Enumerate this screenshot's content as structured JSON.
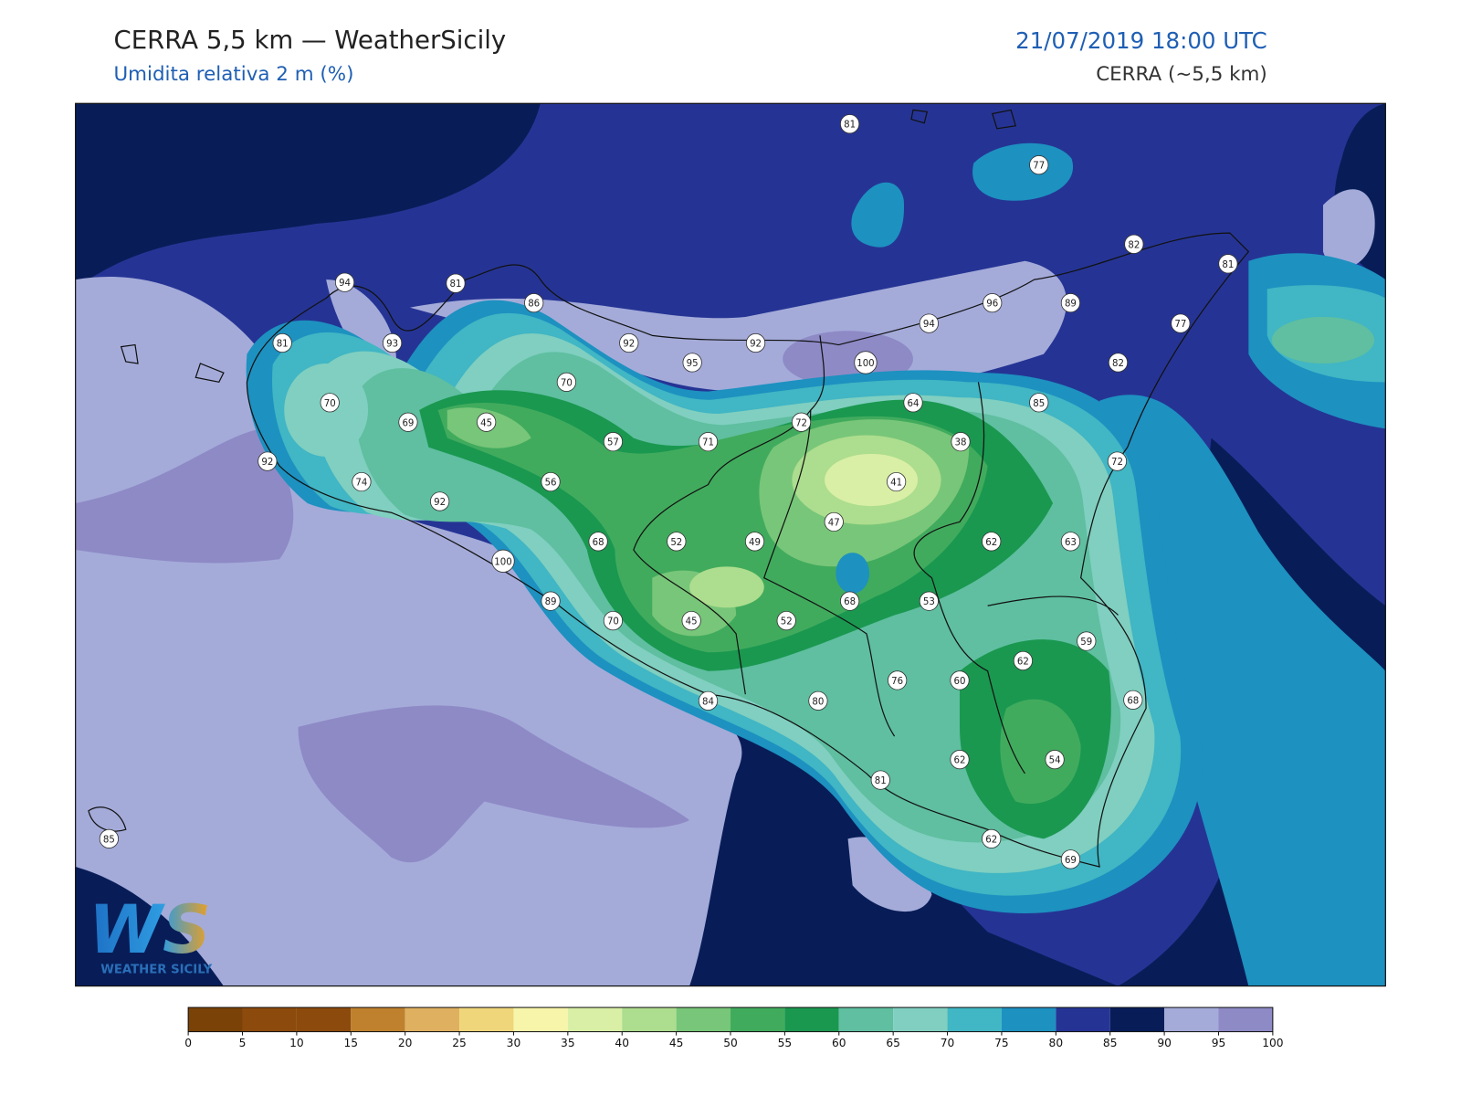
{
  "header": {
    "title": "CERRA 5,5 km — WeatherSicily",
    "subtitle": "Umidita relativa 2 m (%)",
    "datetime": "21/07/2019 18:00 UTC",
    "model": "CERRA (~5,5 km)"
  },
  "map": {
    "stations": [
      81,
      77,
      82,
      81,
      94,
      81,
      86,
      96,
      89,
      77,
      94,
      81,
      93,
      92,
      92,
      100,
      95,
      82,
      70,
      70,
      64,
      85,
      69,
      45,
      72,
      71,
      57,
      38,
      92,
      72,
      41,
      74,
      56,
      92,
      47,
      68,
      52,
      49,
      62,
      63,
      100,
      68,
      53,
      89,
      70,
      45,
      52,
      59,
      62,
      76,
      60,
      68,
      84,
      80,
      62,
      54,
      81,
      85,
      62,
      69
    ]
  },
  "colorbar": {
    "ticks": [
      0,
      5,
      10,
      15,
      20,
      25,
      30,
      35,
      40,
      45,
      50,
      55,
      60,
      65,
      70,
      75,
      80,
      85,
      90,
      95,
      100
    ],
    "colors": [
      "#7a4207",
      "#8c4a0c",
      "#8c4a0c",
      "#bf812d",
      "#dfb060",
      "#f0d67a",
      "#f7f5aa",
      "#d9efa6",
      "#addd8e",
      "#78c679",
      "#41ab5d",
      "#1a9850",
      "#5fbfa0",
      "#80cfc0",
      "#41b6c4",
      "#1d91c0",
      "#253494",
      "#081d58",
      "#a4abd9",
      "#8e8ac6"
    ]
  },
  "logo": {
    "mark": "WS",
    "name": "WEATHER SICILY"
  }
}
